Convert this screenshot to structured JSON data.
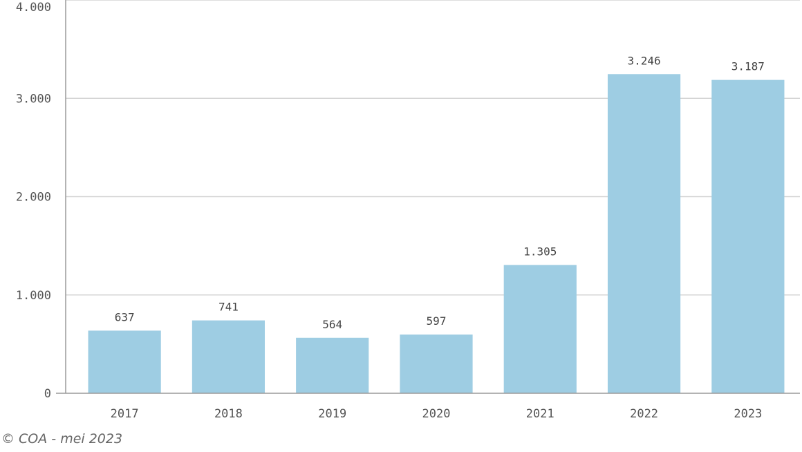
{
  "chart_data": {
    "type": "bar",
    "categories": [
      "2017",
      "2018",
      "2019",
      "2020",
      "2021",
      "2022",
      "2023"
    ],
    "values": [
      637,
      741,
      564,
      597,
      1305,
      3246,
      3187
    ],
    "value_labels": [
      "637",
      "741",
      "564",
      "597",
      "1.305",
      "3.246",
      "3.187"
    ],
    "ylim": [
      0,
      4000
    ],
    "yticks": [
      0,
      1000,
      2000,
      3000,
      4000
    ],
    "ytick_labels": [
      "0",
      "1.000",
      "2.000",
      "3.000",
      "4.000"
    ],
    "grid": true,
    "title": "",
    "xlabel": "",
    "ylabel": "",
    "colors": {
      "bar": "#9ecde3",
      "grid": "#d4d4d4",
      "axis": "#9a9a9a"
    }
  },
  "footer": {
    "credit": "© COA - mei 2023"
  }
}
